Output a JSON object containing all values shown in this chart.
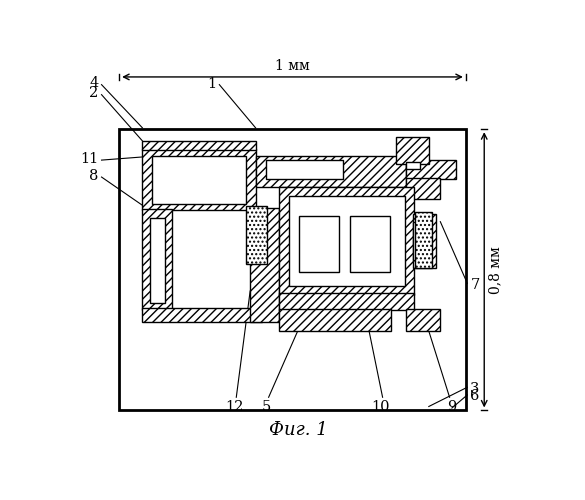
{
  "title": "Фиг. 1",
  "dim_label_h": "1 мм",
  "dim_label_v": "0,8 мм",
  "bg_color": "#ffffff",
  "line_color": "#000000"
}
